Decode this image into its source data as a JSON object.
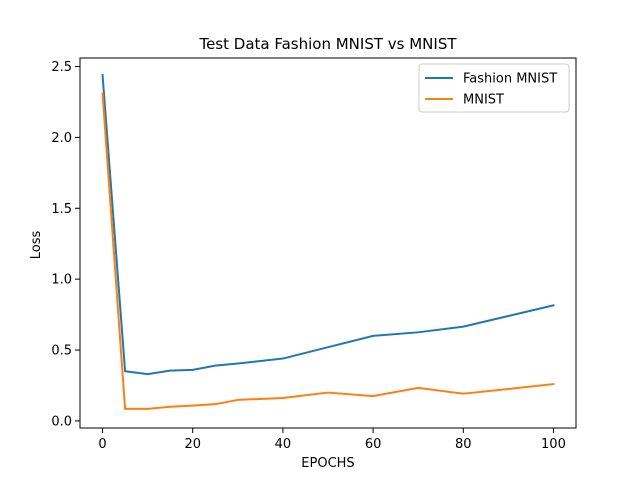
{
  "chart_data": {
    "type": "line",
    "title": "Test Data Fashion MNIST vs MNIST",
    "xlabel": "EPOCHS",
    "ylabel": "Loss",
    "xlim": [
      -5,
      105
    ],
    "ylim": [
      -0.05,
      2.56
    ],
    "xticks": [
      0,
      20,
      40,
      60,
      80,
      100
    ],
    "yticks": [
      0.0,
      0.5,
      1.0,
      1.5,
      2.0,
      2.5
    ],
    "xtick_labels": [
      "0",
      "20",
      "40",
      "60",
      "80",
      "100"
    ],
    "ytick_labels": [
      "0.0",
      "0.5",
      "1.0",
      "1.5",
      "2.0",
      "2.5"
    ],
    "legend_position": "top-right",
    "grid": false,
    "series": [
      {
        "name": "Fashion MNIST",
        "color": "#1f77b4",
        "x": [
          0,
          5,
          10,
          15,
          20,
          25,
          30,
          40,
          50,
          60,
          70,
          80,
          90,
          100
        ],
        "y": [
          2.44,
          0.35,
          0.33,
          0.355,
          0.36,
          0.39,
          0.405,
          0.44,
          0.52,
          0.6,
          0.625,
          0.665,
          0.74,
          0.815
        ]
      },
      {
        "name": "MNIST",
        "color": "#ff7f0e",
        "x": [
          0,
          5,
          10,
          15,
          20,
          25,
          30,
          40,
          50,
          60,
          70,
          80,
          90,
          100
        ],
        "y": [
          2.31,
          0.085,
          0.085,
          0.1,
          0.108,
          0.118,
          0.148,
          0.162,
          0.2,
          0.175,
          0.233,
          0.192,
          0.225,
          0.26
        ]
      }
    ]
  }
}
